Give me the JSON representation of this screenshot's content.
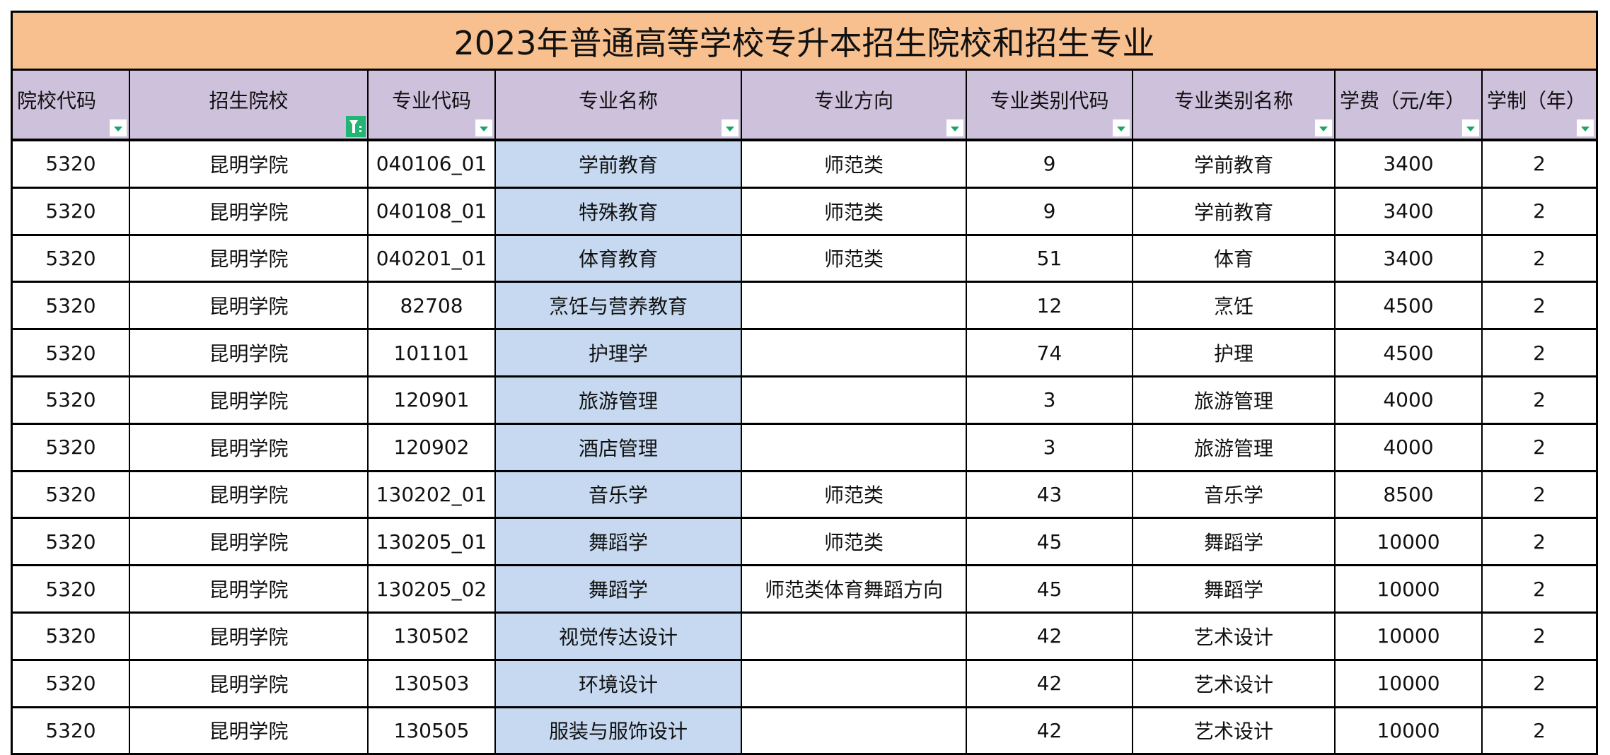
{
  "title": "2023年普通高等学校专升本招生院校和招生专业",
  "colors": {
    "title_bg": "#f8c08f",
    "header_bg": "#cdc1dc",
    "highlight_column_bg": "#c6d9f0",
    "filter_arrow": "#1aa36a",
    "active_filter_bg": "#22b573"
  },
  "columns": [
    {
      "label": "院校代码",
      "filter": "dropdown-arrow"
    },
    {
      "label": "招生院校",
      "filter": "active-filter"
    },
    {
      "label": "专业代码",
      "filter": "dropdown-arrow"
    },
    {
      "label": "专业名称",
      "filter": "dropdown-arrow"
    },
    {
      "label": "专业方向",
      "filter": "dropdown-arrow"
    },
    {
      "label": "专业类别代码",
      "filter": "dropdown-arrow"
    },
    {
      "label": "专业类别名称",
      "filter": "dropdown-arrow"
    },
    {
      "label": "学费（元/年）",
      "filter": "dropdown-arrow"
    },
    {
      "label": "学制（年）",
      "filter": "dropdown-arrow"
    }
  ],
  "rows": [
    [
      "5320",
      "昆明学院",
      "040106_01",
      "学前教育",
      "师范类",
      "9",
      "学前教育",
      "3400",
      "2"
    ],
    [
      "5320",
      "昆明学院",
      "040108_01",
      "特殊教育",
      "师范类",
      "9",
      "学前教育",
      "3400",
      "2"
    ],
    [
      "5320",
      "昆明学院",
      "040201_01",
      "体育教育",
      "师范类",
      "51",
      "体育",
      "3400",
      "2"
    ],
    [
      "5320",
      "昆明学院",
      "82708",
      "烹饪与营养教育",
      "",
      "12",
      "烹饪",
      "4500",
      "2"
    ],
    [
      "5320",
      "昆明学院",
      "101101",
      "护理学",
      "",
      "74",
      "护理",
      "4500",
      "2"
    ],
    [
      "5320",
      "昆明学院",
      "120901",
      "旅游管理",
      "",
      "3",
      "旅游管理",
      "4000",
      "2"
    ],
    [
      "5320",
      "昆明学院",
      "120902",
      "酒店管理",
      "",
      "3",
      "旅游管理",
      "4000",
      "2"
    ],
    [
      "5320",
      "昆明学院",
      "130202_01",
      "音乐学",
      "师范类",
      "43",
      "音乐学",
      "8500",
      "2"
    ],
    [
      "5320",
      "昆明学院",
      "130205_01",
      "舞蹈学",
      "师范类",
      "45",
      "舞蹈学",
      "10000",
      "2"
    ],
    [
      "5320",
      "昆明学院",
      "130205_02",
      "舞蹈学",
      "师范类体育舞蹈方向",
      "45",
      "舞蹈学",
      "10000",
      "2"
    ],
    [
      "5320",
      "昆明学院",
      "130502",
      "视觉传达设计",
      "",
      "42",
      "艺术设计",
      "10000",
      "2"
    ],
    [
      "5320",
      "昆明学院",
      "130503",
      "环境设计",
      "",
      "42",
      "艺术设计",
      "10000",
      "2"
    ],
    [
      "5320",
      "昆明学院",
      "130505",
      "服装与服饰设计",
      "",
      "42",
      "艺术设计",
      "10000",
      "2"
    ]
  ]
}
